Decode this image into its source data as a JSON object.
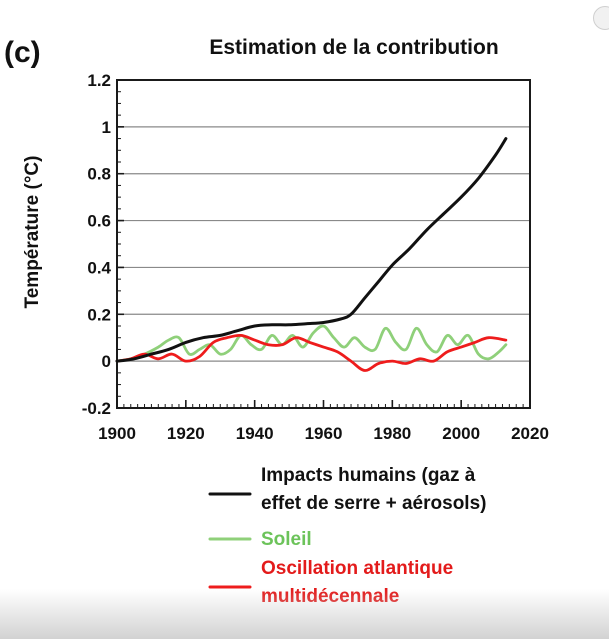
{
  "panel_label": "(c)",
  "chart_data": {
    "type": "line",
    "title": "Estimation de la contribution",
    "xlabel": "",
    "ylabel": "Température (°C)",
    "xlim": [
      1900,
      2020
    ],
    "ylim": [
      -0.2,
      1.2
    ],
    "xticks": [
      1900,
      1920,
      1940,
      1960,
      1980,
      2000,
      2020
    ],
    "yticks": [
      -0.2,
      0,
      0.2,
      0.4,
      0.6,
      0.8,
      1,
      1.2
    ],
    "ytick_labels": [
      "-0.2",
      "0",
      "0.2",
      "0.4",
      "0.6",
      "0.8",
      "1",
      "1.2"
    ],
    "grid": true,
    "legend_position": "bottom",
    "series": [
      {
        "name": "Impacts humains (gaz à effet de serre + aérosols)",
        "legend_lines": [
          "Impacts humains (gaz à",
          "effet de serre + aérosols)"
        ],
        "color": "#111111",
        "label_color": "#111111",
        "x": [
          1900,
          1905,
          1910,
          1915,
          1920,
          1925,
          1930,
          1935,
          1940,
          1945,
          1950,
          1955,
          1960,
          1965,
          1968,
          1972,
          1976,
          1980,
          1985,
          1990,
          1995,
          2000,
          2005,
          2010,
          2013
        ],
        "y": [
          0.0,
          0.01,
          0.03,
          0.05,
          0.08,
          0.1,
          0.11,
          0.13,
          0.15,
          0.155,
          0.155,
          0.16,
          0.165,
          0.18,
          0.2,
          0.27,
          0.34,
          0.41,
          0.48,
          0.56,
          0.63,
          0.7,
          0.78,
          0.88,
          0.95
        ]
      },
      {
        "name": "Soleil",
        "legend_lines": [
          "Soleil"
        ],
        "color": "#8fd07a",
        "label_color": "#6cc35a",
        "x": [
          1900,
          1904,
          1908,
          1912,
          1915,
          1918,
          1921,
          1924,
          1927,
          1930,
          1933,
          1936,
          1939,
          1942,
          1945,
          1948,
          1951,
          1954,
          1957,
          1960,
          1963,
          1966,
          1969,
          1972,
          1975,
          1978,
          1981,
          1984,
          1987,
          1990,
          1993,
          1996,
          1999,
          2002,
          2005,
          2008,
          2011,
          2013
        ],
        "y": [
          0.0,
          0.01,
          0.03,
          0.06,
          0.09,
          0.1,
          0.03,
          0.05,
          0.07,
          0.03,
          0.05,
          0.11,
          0.07,
          0.05,
          0.11,
          0.07,
          0.11,
          0.06,
          0.12,
          0.15,
          0.1,
          0.06,
          0.1,
          0.06,
          0.05,
          0.14,
          0.08,
          0.05,
          0.14,
          0.07,
          0.04,
          0.11,
          0.07,
          0.11,
          0.03,
          0.01,
          0.04,
          0.07
        ]
      },
      {
        "name": "Oscillation atlantique multidécennale",
        "legend_lines": [
          "Oscillation atlantique",
          "multidécennale"
        ],
        "color": "#ee1c1c",
        "label_color": "#e31b1b",
        "x": [
          1900,
          1904,
          1908,
          1912,
          1916,
          1920,
          1924,
          1928,
          1932,
          1936,
          1940,
          1944,
          1948,
          1952,
          1956,
          1960,
          1964,
          1968,
          1972,
          1976,
          1980,
          1984,
          1988,
          1992,
          1996,
          2000,
          2004,
          2008,
          2013
        ],
        "y": [
          0.0,
          0.01,
          0.03,
          0.01,
          0.03,
          0.0,
          0.02,
          0.08,
          0.1,
          0.11,
          0.09,
          0.07,
          0.07,
          0.1,
          0.08,
          0.06,
          0.04,
          0.0,
          -0.04,
          -0.01,
          0.0,
          -0.01,
          0.01,
          0.0,
          0.04,
          0.06,
          0.08,
          0.1,
          0.09
        ]
      }
    ]
  }
}
